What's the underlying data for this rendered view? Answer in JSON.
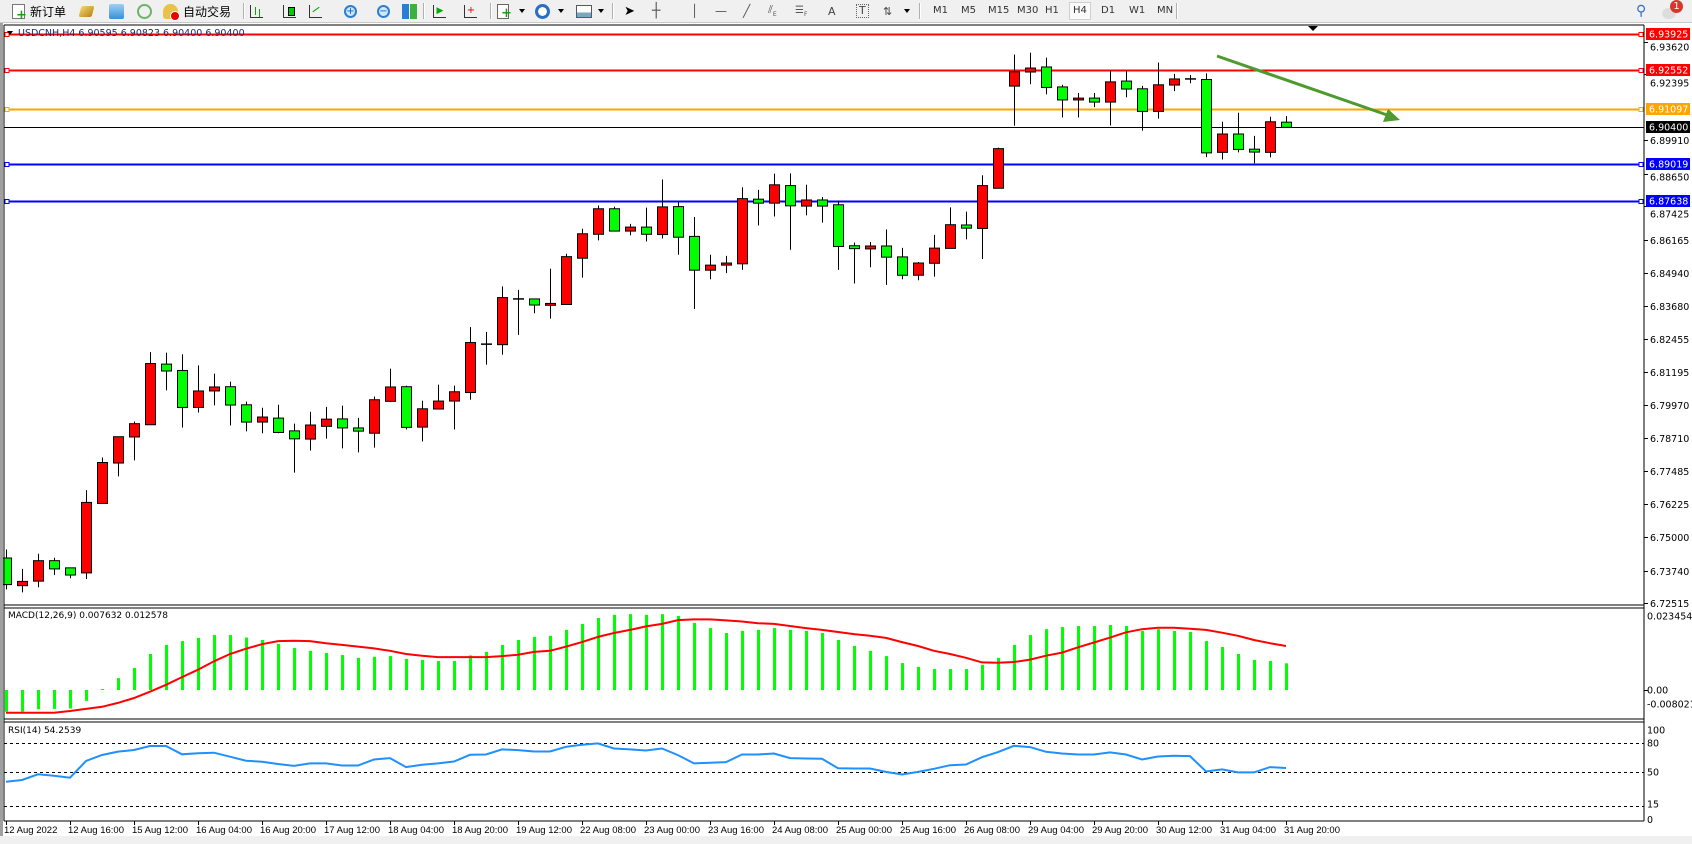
{
  "toolbar": {
    "new_order_label": "新订单",
    "auto_trading_label": "自动交易",
    "periods": [
      "M1",
      "M5",
      "M15",
      "M30",
      "H1",
      "H4",
      "D1",
      "W1",
      "MN"
    ],
    "active_period": "H4",
    "notification_count": "1",
    "icons": [
      "new-order-icon",
      "market-watch-icon",
      "data-window-icon",
      "signals-icon",
      "auto-trading-icon",
      "bar-chart-icon",
      "candlestick-icon",
      "line-chart-icon",
      "zoom-in-icon",
      "zoom-out-icon",
      "tile-windows-icon",
      "autoscroll-icon",
      "chart-shift-icon",
      "indicators-icon",
      "periods-icon",
      "templates-icon",
      "cursor-icon",
      "crosshair-icon",
      "vertical-line-icon",
      "horizontal-line-icon",
      "trendline-icon",
      "equidistant-channel-icon",
      "fibonacci-icon",
      "text-icon",
      "text-label-icon",
      "arrows-icon",
      "search-icon",
      "notification-icon"
    ]
  },
  "chart": {
    "symbol_info": "USDCNH,H4  6.90595 6.90823 6.90400 6.90400",
    "colors": {
      "bull": "#ff0000",
      "bear": "#00ff00",
      "macd_hist": "#00ff00",
      "macd_signal": "#ff0000",
      "rsi": "#1e90ff",
      "trend_arrow": "#4f9a2f"
    },
    "levels": [
      {
        "price": "6.93925",
        "color": "#ff0000"
      },
      {
        "price": "6.92552",
        "color": "#ff0000"
      },
      {
        "price": "6.91097",
        "color": "#ffa500"
      },
      {
        "price": "6.89019",
        "color": "#0000ff"
      },
      {
        "price": "6.87638",
        "color": "#0000ff"
      }
    ],
    "bid": {
      "price": "6.90400",
      "color": "#000000"
    },
    "price_ticks": [
      "6.93620",
      "6.92395",
      "6.89910",
      "6.88650",
      "6.87425",
      "6.86165",
      "6.84940",
      "6.83680",
      "6.82455",
      "6.81195",
      "6.79970",
      "6.78710",
      "6.77485",
      "6.76225",
      "6.75000",
      "6.73740",
      "6.72515"
    ],
    "macd_label": "MACD(12,26,9) 0.007632 0.012578",
    "macd_ticks": [
      "0.023454",
      "0.00",
      "-0.008021"
    ],
    "rsi_label": "RSI(14) 54.2539",
    "rsi_ticks": [
      "100",
      "80",
      "50",
      "15",
      "0"
    ],
    "time_labels": [
      "12 Aug 2022",
      "12 Aug 16:00",
      "15 Aug 12:00",
      "16 Aug 04:00",
      "16 Aug 20:00",
      "17 Aug 12:00",
      "18 Aug 04:00",
      "18 Aug 20:00",
      "19 Aug 12:00",
      "22 Aug 08:00",
      "23 Aug 00:00",
      "23 Aug 16:00",
      "24 Aug 08:00",
      "25 Aug 00:00",
      "25 Aug 16:00",
      "26 Aug 08:00",
      "29 Aug 04:00",
      "29 Aug 20:00",
      "30 Aug 12:00",
      "31 Aug 04:00",
      "31 Aug 20:00"
    ]
  },
  "chart_data": {
    "type": "candlestick",
    "symbol": "USDCNH",
    "timeframe": "H4",
    "ohlc_order": [
      "open",
      "high",
      "low",
      "close"
    ],
    "price_range": [
      6.72515,
      6.9362
    ],
    "candles": [
      [
        6.7421,
        6.7453,
        6.7303,
        6.7321
      ],
      [
        6.7317,
        6.738,
        6.7292,
        6.7333
      ],
      [
        6.7334,
        6.7437,
        6.7311,
        6.7411
      ],
      [
        6.7411,
        6.7422,
        6.7357,
        6.738
      ],
      [
        6.7384,
        6.7384,
        6.7345,
        6.7357
      ],
      [
        6.7365,
        6.7676,
        6.7342,
        6.763
      ],
      [
        6.7626,
        6.7799,
        6.7626,
        6.778
      ],
      [
        6.7778,
        6.7877,
        6.7728,
        6.7877
      ],
      [
        6.7876,
        6.7934,
        6.7788,
        6.7926
      ],
      [
        6.7922,
        6.8195,
        6.7922,
        6.8152
      ],
      [
        6.815,
        6.8193,
        6.8051,
        6.8124
      ],
      [
        6.8126,
        6.8187,
        6.7911,
        6.7987
      ],
      [
        6.7987,
        6.8145,
        6.7968,
        6.8049
      ],
      [
        6.8049,
        6.8114,
        6.7995,
        6.8064
      ],
      [
        6.8065,
        6.8084,
        6.7919,
        6.7996
      ],
      [
        6.7997,
        6.8009,
        6.7897,
        6.7932
      ],
      [
        6.7932,
        6.7986,
        6.789,
        6.7951
      ],
      [
        6.7947,
        6.7997,
        6.789,
        6.7893
      ],
      [
        6.7899,
        6.7926,
        6.7742,
        6.7869
      ],
      [
        6.7868,
        6.7971,
        6.7825,
        6.7921
      ],
      [
        6.7916,
        6.7989,
        6.787,
        6.7943
      ],
      [
        6.7944,
        6.7994,
        6.7833,
        6.791
      ],
      [
        6.791,
        6.7948,
        6.7818,
        6.7898
      ],
      [
        6.789,
        6.8028,
        6.7836,
        6.8016
      ],
      [
        6.801,
        6.8133,
        6.8007,
        6.8064
      ],
      [
        6.8065,
        6.8069,
        6.7904,
        6.7912
      ],
      [
        6.7913,
        6.8012,
        6.7859,
        6.7982
      ],
      [
        6.7981,
        6.8073,
        6.7981,
        6.8011
      ],
      [
        6.8011,
        6.8069,
        6.7904,
        6.8046
      ],
      [
        6.8043,
        6.8289,
        6.8016,
        6.8231
      ],
      [
        6.8225,
        6.8271,
        6.8148,
        6.8225
      ],
      [
        6.8223,
        6.8442,
        6.8185,
        6.84
      ],
      [
        6.8395,
        6.8429,
        6.826,
        6.8395
      ],
      [
        6.8395,
        6.8395,
        6.8341,
        6.8372
      ],
      [
        6.8371,
        6.8509,
        6.8321,
        6.8378
      ],
      [
        6.8374,
        6.8565,
        6.8374,
        6.8554
      ],
      [
        6.8548,
        6.8659,
        6.8475,
        6.864
      ],
      [
        6.8638,
        6.8746,
        6.8615,
        6.8734
      ],
      [
        6.8734,
        6.8742,
        6.865,
        6.865
      ],
      [
        6.865,
        6.8677,
        6.8634,
        6.8665
      ],
      [
        6.8665,
        6.8738,
        6.8611,
        6.8638
      ],
      [
        6.8637,
        6.8844,
        6.8622,
        6.8741
      ],
      [
        6.8742,
        6.8761,
        6.8561,
        6.8627
      ],
      [
        6.863,
        6.8703,
        6.8357,
        6.8503
      ],
      [
        6.8503,
        6.8561,
        6.8469,
        6.8522
      ],
      [
        6.8522,
        6.8557,
        6.8492,
        6.853
      ],
      [
        6.8527,
        6.8815,
        6.8504,
        6.8772
      ],
      [
        6.877,
        6.8805,
        6.8671,
        6.8755
      ],
      [
        6.8755,
        6.8866,
        6.8705,
        6.8824
      ],
      [
        6.8821,
        6.8867,
        6.858,
        6.8745
      ],
      [
        6.8744,
        6.8824,
        6.8709,
        6.8767
      ],
      [
        6.8767,
        6.8778,
        6.8682,
        6.8744
      ],
      [
        6.8749,
        6.8765,
        6.8504,
        6.8592
      ],
      [
        6.8595,
        6.8607,
        6.8453,
        6.8584
      ],
      [
        6.8583,
        6.8609,
        6.8514,
        6.8594
      ],
      [
        6.8594,
        6.8656,
        6.8448,
        6.8552
      ],
      [
        6.8553,
        6.8587,
        6.8469,
        6.8484
      ],
      [
        6.8484,
        6.8534,
        6.8465,
        6.853
      ],
      [
        6.8529,
        6.8636,
        6.8479,
        6.8586
      ],
      [
        6.8585,
        6.8739,
        6.8585,
        6.8674
      ],
      [
        6.8673,
        6.8723,
        6.8619,
        6.8661
      ],
      [
        6.866,
        6.886,
        6.8545,
        6.8821
      ],
      [
        6.8811,
        6.8964,
        6.8811,
        6.896
      ],
      [
        6.9195,
        6.9314,
        6.9046,
        6.9249
      ],
      [
        6.9248,
        6.9321,
        6.9202,
        6.9263
      ],
      [
        6.9267,
        6.9302,
        6.9164,
        6.919
      ],
      [
        6.9192,
        6.92,
        6.9077,
        6.9143
      ],
      [
        6.9143,
        6.9169,
        6.9077,
        6.915
      ],
      [
        6.915,
        6.9169,
        6.9116,
        6.9135
      ],
      [
        6.9135,
        6.9254,
        6.9047,
        6.9211
      ],
      [
        6.9214,
        6.9253,
        6.9153,
        6.9184
      ],
      [
        6.9185,
        6.9196,
        6.9027,
        6.91
      ],
      [
        6.91,
        6.9284,
        6.9073,
        6.92
      ],
      [
        6.9199,
        6.9241,
        6.9176,
        6.9222
      ],
      [
        6.9222,
        6.9237,
        6.9206,
        6.9222
      ],
      [
        6.922,
        6.9243,
        6.8928,
        6.8944
      ],
      [
        6.8946,
        6.9061,
        6.8919,
        6.9015
      ],
      [
        6.9015,
        6.9095,
        6.8946,
        6.8957
      ],
      [
        6.8958,
        6.9008,
        6.8905,
        6.8947
      ],
      [
        6.8946,
        6.908,
        6.8927,
        6.9061
      ],
      [
        6.90595,
        6.90823,
        6.904,
        6.904
      ]
    ],
    "macd": {
      "params": "12,26,9",
      "range": [
        -0.008021,
        0.023454
      ],
      "histogram": [
        -0.0062,
        -0.0062,
        -0.0055,
        -0.0054,
        -0.0053,
        -0.0031,
        0.0003,
        0.0034,
        0.0063,
        0.0103,
        0.0129,
        0.014,
        0.0149,
        0.0157,
        0.0157,
        0.015,
        0.0143,
        0.0132,
        0.012,
        0.0112,
        0.0106,
        0.01,
        0.0092,
        0.0095,
        0.0097,
        0.0089,
        0.0086,
        0.0083,
        0.0083,
        0.0099,
        0.0109,
        0.0129,
        0.0143,
        0.0152,
        0.0155,
        0.0172,
        0.0189,
        0.0206,
        0.0215,
        0.0217,
        0.0215,
        0.0217,
        0.0212,
        0.0192,
        0.0177,
        0.0163,
        0.0169,
        0.0172,
        0.0177,
        0.0172,
        0.0169,
        0.0163,
        0.0143,
        0.0126,
        0.0112,
        0.0097,
        0.0077,
        0.0066,
        0.006,
        0.006,
        0.006,
        0.0072,
        0.0092,
        0.0129,
        0.0157,
        0.0174,
        0.018,
        0.0183,
        0.0183,
        0.0186,
        0.0183,
        0.0169,
        0.0174,
        0.0169,
        0.0166,
        0.014,
        0.0123,
        0.0103,
        0.0086,
        0.0083,
        0.007632
      ],
      "signal": [
        -0.0065,
        -0.0065,
        -0.0065,
        -0.0065,
        -0.006,
        -0.0054,
        -0.0048,
        -0.0037,
        -0.0023,
        -0.0005,
        0.0015,
        0.0037,
        0.0058,
        0.0082,
        0.0103,
        0.0118,
        0.0131,
        0.014,
        0.0141,
        0.014,
        0.0134,
        0.0129,
        0.0124,
        0.0119,
        0.0112,
        0.0103,
        0.0098,
        0.0094,
        0.0094,
        0.0094,
        0.0094,
        0.0097,
        0.0101,
        0.0109,
        0.0112,
        0.0124,
        0.0137,
        0.0152,
        0.0163,
        0.0172,
        0.0182,
        0.0189,
        0.02,
        0.0202,
        0.0202,
        0.0199,
        0.0196,
        0.0191,
        0.0189,
        0.0183,
        0.0177,
        0.0172,
        0.0166,
        0.016,
        0.0155,
        0.0149,
        0.0137,
        0.0126,
        0.0112,
        0.0103,
        0.0092,
        0.0079,
        0.0078,
        0.008,
        0.0087,
        0.0098,
        0.0107,
        0.0122,
        0.0136,
        0.015,
        0.0165,
        0.0174,
        0.0178,
        0.0178,
        0.0175,
        0.0172,
        0.0164,
        0.0155,
        0.0143,
        0.0134,
        0.012578
      ]
    },
    "rsi": {
      "period": 14,
      "levels": [
        80,
        50,
        15
      ],
      "range": [
        0,
        100
      ],
      "values": [
        40.1,
        41.9,
        47.8,
        46.3,
        44.3,
        61.5,
        67.7,
        71.2,
        72.9,
        77.0,
        77.0,
        68.5,
        69.5,
        70.1,
        66.0,
        61.8,
        60.8,
        58.4,
        56.5,
        59.0,
        59.0,
        56.9,
        56.9,
        63.1,
        64.5,
        55.2,
        57.6,
        59.0,
        61.0,
        67.9,
        68.3,
        73.5,
        72.8,
        71.4,
        71.4,
        76.2,
        78.3,
        79.7,
        74.5,
        73.5,
        72.4,
        74.5,
        67.6,
        59.0,
        59.7,
        60.4,
        68.3,
        68.3,
        69.3,
        64.5,
        64.1,
        63.8,
        54.1,
        53.8,
        53.8,
        50.3,
        47.6,
        50.3,
        53.5,
        57.2,
        57.9,
        65.5,
        70.7,
        77.3,
        75.9,
        71.0,
        69.3,
        68.3,
        68.3,
        70.4,
        68.3,
        63.1,
        66.2,
        66.9,
        66.6,
        50.7,
        52.8,
        49.7,
        49.7,
        55.2,
        54.2539
      ]
    },
    "annotations": [
      {
        "type": "trend-arrow",
        "direction": "down",
        "color": "#4f9a2f"
      }
    ]
  }
}
